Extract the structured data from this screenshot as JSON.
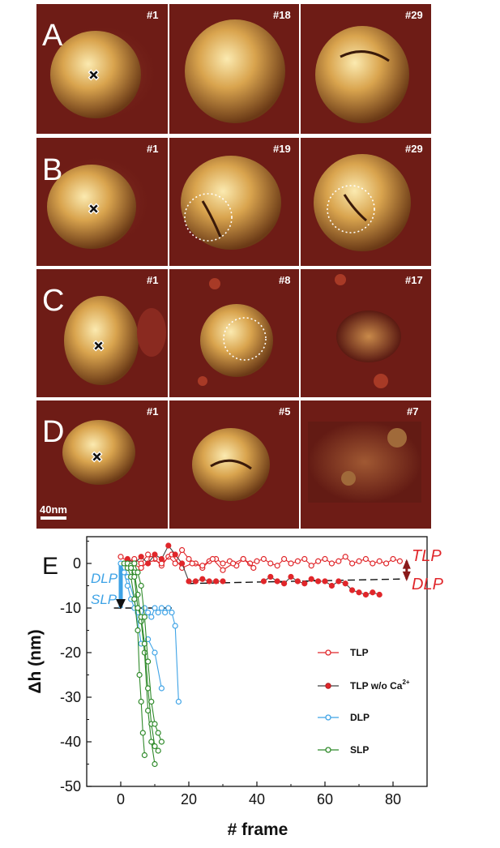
{
  "micrographs": {
    "rows": [
      {
        "label": "A",
        "frames": [
          "#1",
          "#18",
          "#29"
        ]
      },
      {
        "label": "B",
        "frames": [
          "#1",
          "#19",
          "#29"
        ]
      },
      {
        "label": "C",
        "frames": [
          "#1",
          "#8",
          "#17"
        ]
      },
      {
        "label": "D",
        "frames": [
          "#1",
          "#5",
          "#7"
        ]
      }
    ],
    "scale_bar": "40nm",
    "colors": {
      "background": "#6e1c16",
      "particle": "#d9a44e",
      "highlight": "#f7e1a0"
    }
  },
  "chart_data": {
    "type": "scatter",
    "panel_label": "E",
    "xlabel": "# frame",
    "ylabel": "Δh (nm)",
    "xlim": [
      -10,
      90
    ],
    "ylim": [
      -50,
      6
    ],
    "x_ticks": [
      0,
      20,
      40,
      60,
      80
    ],
    "y_ticks": [
      0,
      -10,
      -20,
      -30,
      -40,
      -50
    ],
    "legend_position": "right",
    "legend": [
      {
        "label": "TLP",
        "color": "#e0262a",
        "marker": "open-circle"
      },
      {
        "label": "TLP w/o Ca",
        "superscript": "2+",
        "color": "#e0262a",
        "marker": "filled-circle"
      },
      {
        "label": "DLP",
        "color": "#3ea3e6",
        "marker": "open-circle"
      },
      {
        "label": "SLP",
        "color": "#2f8a2a",
        "marker": "open-circle"
      }
    ],
    "annotations": {
      "tlp": "TLP",
      "dlp_right": "DLP",
      "dlp_left": "DLP",
      "slp_left": "SLP"
    },
    "series": [
      {
        "name": "TLP",
        "color": "#e0262a",
        "filled": false,
        "traces": [
          {
            "x": [
              0,
              2,
              4,
              6,
              8,
              10,
              12,
              14,
              16,
              18,
              20,
              22,
              24,
              26,
              28,
              30,
              32,
              34,
              36,
              38,
              40,
              42,
              44,
              46,
              48,
              50,
              52,
              54,
              56,
              58,
              60,
              62,
              64,
              66,
              68,
              70,
              72,
              74,
              76,
              78,
              80,
              82
            ],
            "y": [
              1.5,
              0.5,
              1,
              0,
              2,
              1,
              -0.5,
              1.5,
              0,
              3,
              1,
              0,
              -1,
              0.5,
              1,
              0,
              0.5,
              -0.5,
              1,
              0,
              0.5,
              1,
              0,
              -0.5,
              1,
              0,
              0.5,
              1,
              -0.5,
              0.5,
              1,
              0,
              0.5,
              1.5,
              0,
              0.5,
              1,
              0,
              0.5,
              0,
              1,
              0.5
            ]
          },
          {
            "x": [
              3,
              6,
              9,
              12,
              15,
              18,
              21,
              24,
              27,
              30,
              33,
              36,
              39
            ],
            "y": [
              0,
              -1,
              1,
              0,
              2,
              -1,
              0,
              -0.5,
              1,
              -1.5,
              0,
              1,
              -1
            ]
          }
        ]
      },
      {
        "name": "TLP w/o Ca",
        "color": "#e0262a",
        "filled": true,
        "traces": [
          {
            "x": [
              2,
              4,
              6,
              8,
              10,
              12,
              14,
              16,
              18,
              20,
              22,
              24,
              26,
              28,
              30
            ],
            "y": [
              1,
              0,
              1.5,
              0,
              2,
              1,
              4,
              2,
              0,
              -4,
              -4,
              -3.5,
              -4,
              -4,
              -4
            ]
          },
          {
            "x": [
              42,
              44,
              46,
              48,
              50,
              52,
              54,
              56,
              58,
              60,
              62,
              64,
              66,
              68,
              70,
              72,
              74,
              76
            ],
            "y": [
              -4,
              -3,
              -4,
              -4.5,
              -3,
              -4,
              -4.5,
              -3.5,
              -4,
              -4,
              -5,
              -4,
              -4.5,
              -6,
              -6.5,
              -7,
              -6.5,
              -7
            ]
          }
        ]
      },
      {
        "name": "DLP",
        "color": "#3ea3e6",
        "filled": false,
        "traces": [
          {
            "x": [
              0,
              1,
              2,
              3,
              4,
              5,
              6,
              7,
              8,
              9,
              10,
              11,
              12,
              13,
              14,
              15,
              16,
              17
            ],
            "y": [
              0,
              -2,
              -5,
              -8,
              -10,
              -11,
              -12,
              -10,
              -11,
              -12,
              -10,
              -11,
              -10,
              -11,
              -10,
              -11,
              -14,
              -31
            ]
          },
          {
            "x": [
              2,
              4,
              6,
              8,
              10,
              12
            ],
            "y": [
              -3,
              -8,
              -18,
              -17,
              -20,
              -28
            ]
          }
        ]
      },
      {
        "name": "SLP",
        "color": "#2f8a2a",
        "filled": false,
        "traces": [
          {
            "x": [
              1,
              2,
              3,
              4,
              5,
              5.5,
              6,
              6.5,
              7
            ],
            "y": [
              0,
              -1,
              -3,
              -8,
              -15,
              -25,
              -31,
              -38,
              -43
            ]
          },
          {
            "x": [
              2,
              3,
              4,
              5,
              6,
              7,
              8,
              9,
              10
            ],
            "y": [
              0,
              -0.5,
              -2,
              -7,
              -13,
              -20,
              -33,
              -40,
              -45
            ]
          },
          {
            "x": [
              3,
              4,
              5,
              6,
              7,
              8,
              9,
              10,
              11
            ],
            "y": [
              -1,
              -3,
              -10,
              -12,
              -18,
              -28,
              -36,
              -41,
              -42
            ]
          },
          {
            "x": [
              4,
              5,
              6,
              7,
              8,
              9,
              10,
              11,
              12
            ],
            "y": [
              0,
              -2,
              -5,
              -12,
              -22,
              -31,
              -36,
              -38,
              -40
            ]
          }
        ]
      }
    ]
  }
}
